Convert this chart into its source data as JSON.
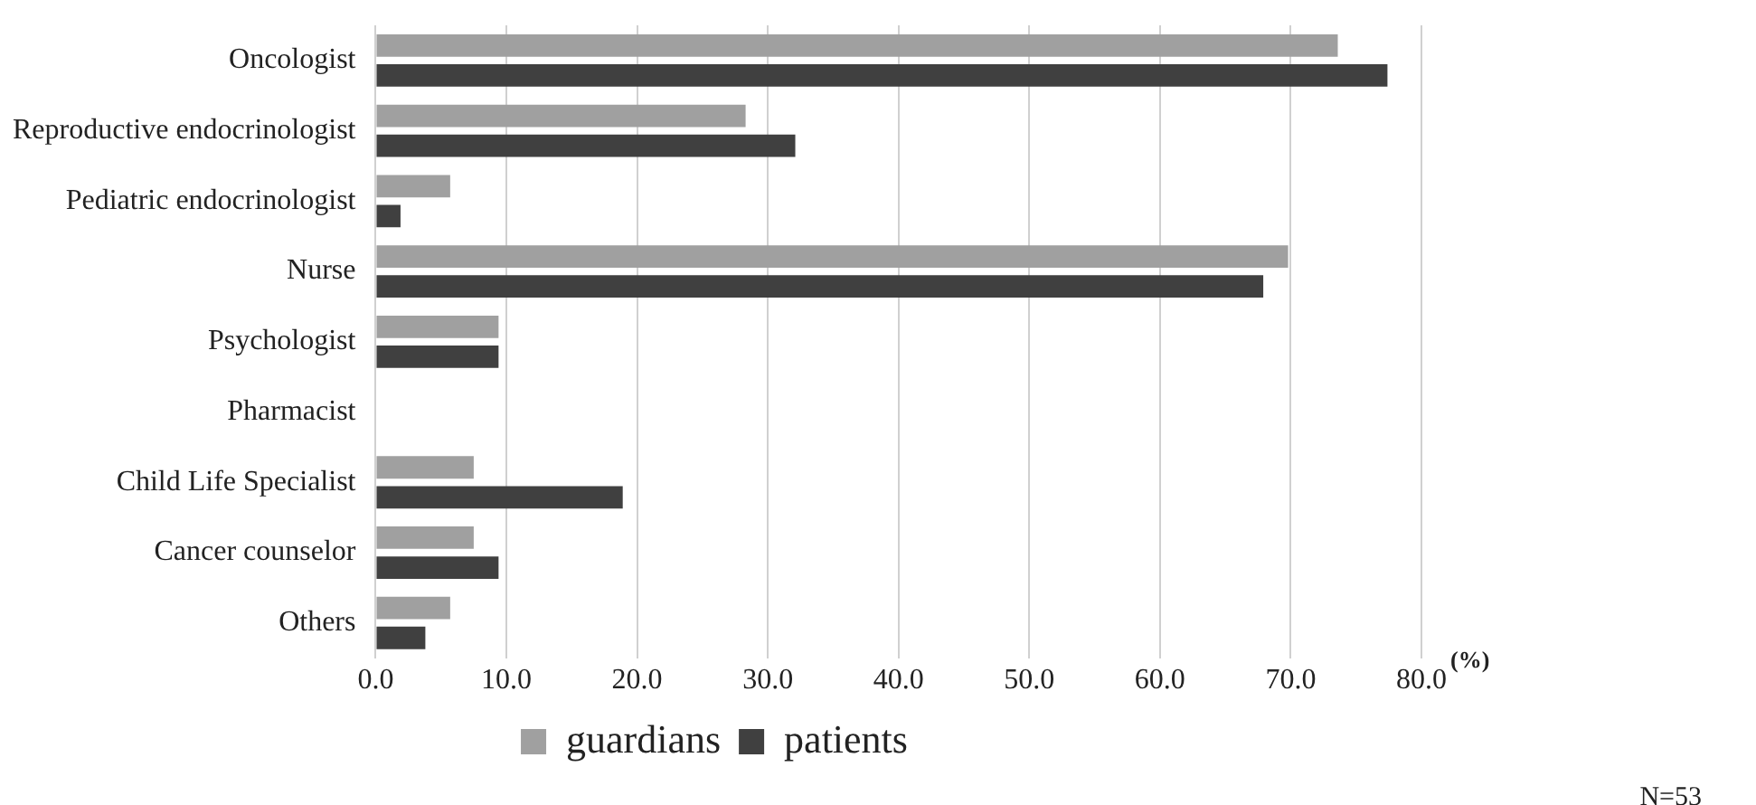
{
  "chart_data": {
    "type": "bar",
    "orientation": "horizontal",
    "categories": [
      "Oncologist",
      "Reproductive endocrinologist",
      "Pediatric endocrinologist",
      "Nurse",
      "Psychologist",
      "Pharmacist",
      "Child Life Specialist",
      "Cancer counselor",
      "Others"
    ],
    "series": [
      {
        "name": "guardians",
        "color": "#a0a0a0",
        "values": [
          73.6,
          28.3,
          5.7,
          69.8,
          9.4,
          0.0,
          7.5,
          7.5,
          5.7
        ]
      },
      {
        "name": "patients",
        "color": "#404040",
        "values": [
          77.4,
          32.1,
          1.9,
          67.9,
          9.4,
          0.0,
          18.9,
          9.4,
          3.8
        ]
      }
    ],
    "xlim": [
      0,
      80
    ],
    "xticks": [
      {
        "value": 0,
        "label": "0.0"
      },
      {
        "value": 10,
        "label": "10.0"
      },
      {
        "value": 20,
        "label": "20.0"
      },
      {
        "value": 30,
        "label": "30.0"
      },
      {
        "value": 40,
        "label": "40.0"
      },
      {
        "value": 50,
        "label": "50.0"
      },
      {
        "value": 60,
        "label": "60.0"
      },
      {
        "value": 70,
        "label": "70.0"
      },
      {
        "value": 80,
        "label": "80.0"
      }
    ],
    "grid": "x",
    "legend": "bottom",
    "annotations": [
      "(%)",
      "N=53"
    ]
  }
}
